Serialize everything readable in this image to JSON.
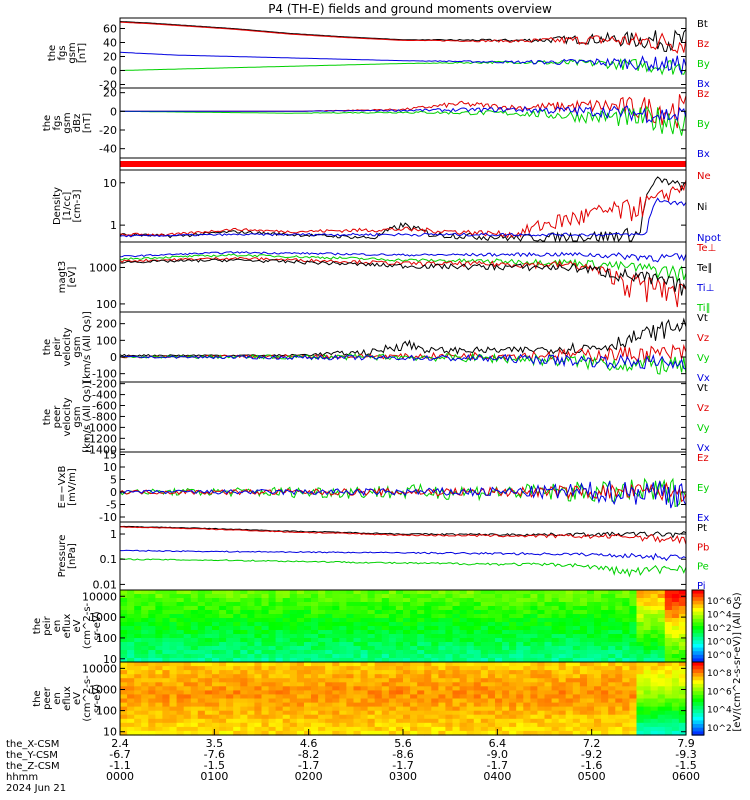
{
  "title": "P4 (TH-E) fields and ground moments overview",
  "colors": {
    "black": "#000000",
    "red": "#e00000",
    "green": "#00d000",
    "blue": "#0000e0",
    "band": "#ff0000"
  },
  "chart_data": [
    {
      "type": "line",
      "id": "fgs_gsm",
      "ylabel": [
        "the",
        "fgs",
        "gsm",
        "[nT]"
      ],
      "yticks": [
        -20,
        0,
        20,
        40,
        60
      ],
      "ylim": [
        -25,
        75
      ],
      "legend": [
        {
          "label": "Bt",
          "color": "#000000"
        },
        {
          "label": "Bz",
          "color": "#e00000"
        },
        {
          "label": "By",
          "color": "#00d000"
        },
        {
          "label": "Bx",
          "color": "#0000e0"
        }
      ],
      "series": [
        {
          "name": "Bt",
          "color": "#000000",
          "x": [
            0,
            0.05,
            0.2,
            0.3,
            0.4,
            0.5,
            0.7,
            0.85,
            1
          ],
          "y": [
            70,
            68,
            60,
            53,
            48,
            44,
            43,
            45,
            42
          ],
          "noise": [
            0,
            0,
            0,
            0,
            0,
            0,
            2,
            8,
            18
          ]
        },
        {
          "name": "Bz",
          "color": "#e00000",
          "x": [
            0,
            0.05,
            0.2,
            0.3,
            0.4,
            0.5,
            0.7,
            0.85,
            1
          ],
          "y": [
            69,
            67,
            59,
            52,
            47,
            43,
            42,
            44,
            40
          ],
          "noise": [
            0,
            0,
            0,
            0,
            0,
            0,
            2,
            8,
            18
          ]
        },
        {
          "name": "By",
          "color": "#00d000",
          "x": [
            0,
            0.1,
            0.3,
            0.5,
            0.7,
            0.85,
            1
          ],
          "y": [
            0,
            2,
            6,
            10,
            12,
            10,
            5
          ],
          "noise": [
            0,
            0,
            0,
            0,
            2,
            6,
            14
          ]
        },
        {
          "name": "Bx",
          "color": "#0000e0",
          "x": [
            0,
            0.1,
            0.3,
            0.5,
            0.7,
            0.85,
            1
          ],
          "y": [
            26,
            22,
            18,
            14,
            12,
            12,
            8
          ],
          "noise": [
            0,
            0,
            0,
            0,
            2,
            6,
            14
          ]
        }
      ]
    },
    {
      "type": "line",
      "id": "fgs_gsm_dbz",
      "ylabel": [
        "the",
        "fgs",
        "gsm",
        "dBz",
        "[nT]"
      ],
      "yticks": [
        -40,
        -20,
        0,
        20
      ],
      "ylim": [
        -50,
        25
      ],
      "legend": [
        {
          "label": "Bz",
          "color": "#e00000"
        },
        {
          "label": "By",
          "color": "#00d000"
        },
        {
          "label": "Bx",
          "color": "#0000e0"
        }
      ],
      "series": [
        {
          "name": "Bz",
          "color": "#e00000",
          "x": [
            0,
            0.3,
            0.5,
            0.6,
            0.7,
            0.85,
            1
          ],
          "y": [
            0,
            0,
            2,
            8,
            4,
            6,
            0
          ],
          "noise": [
            0,
            0,
            1,
            3,
            3,
            8,
            20
          ]
        },
        {
          "name": "By",
          "color": "#00d000",
          "x": [
            0,
            0.3,
            0.5,
            0.7,
            0.85,
            1
          ],
          "y": [
            0,
            -2,
            -1,
            -2,
            -6,
            -10
          ],
          "noise": [
            0,
            0,
            1,
            3,
            8,
            18
          ]
        },
        {
          "name": "Bx",
          "color": "#0000e0",
          "x": [
            0,
            0.3,
            0.5,
            0.7,
            0.85,
            1
          ],
          "y": [
            0,
            0,
            1,
            2,
            0,
            -5
          ],
          "noise": [
            0,
            0,
            1,
            3,
            6,
            12
          ]
        }
      ]
    },
    {
      "type": "band",
      "id": "mode_bar"
    },
    {
      "type": "line",
      "scale": "log",
      "id": "density",
      "ylabel": [
        "Density",
        "[1/cc]",
        "[cm-3]"
      ],
      "yticks": [
        1,
        10
      ],
      "ylim": [
        0.4,
        20
      ],
      "legend": [
        {
          "label": "Ne",
          "color": "#e00000"
        },
        {
          "label": "Ni",
          "color": "#000000"
        },
        {
          "label": "Npot",
          "color": "#0000e0"
        }
      ],
      "series": [
        {
          "name": "Ni",
          "color": "#000000",
          "x": [
            0,
            0.1,
            0.2,
            0.3,
            0.45,
            0.5,
            0.55,
            0.7,
            0.85,
            0.92,
            0.95,
            1
          ],
          "y": [
            0.6,
            0.55,
            0.7,
            0.6,
            0.5,
            1.0,
            0.6,
            0.5,
            0.55,
            0.6,
            12,
            8
          ],
          "noise": [
            0.05,
            0.05,
            0.05,
            0.05,
            0.05,
            0.2,
            0.1,
            0.1,
            0.2,
            0.3,
            2,
            2
          ]
        },
        {
          "name": "Ne",
          "color": "#e00000",
          "x": [
            0,
            0.1,
            0.2,
            0.3,
            0.5,
            0.7,
            0.8,
            0.9,
            0.95,
            1
          ],
          "y": [
            0.6,
            0.6,
            0.8,
            0.7,
            0.8,
            0.6,
            1.5,
            2.5,
            4,
            9
          ],
          "noise": [
            0.05,
            0.05,
            0.05,
            0.05,
            0.1,
            0.1,
            0.8,
            1.5,
            2,
            3
          ]
        },
        {
          "name": "Npot",
          "color": "#0000e0",
          "x": [
            0,
            0.2,
            0.5,
            0.8,
            0.93,
            0.95,
            1
          ],
          "y": [
            0.55,
            0.6,
            0.6,
            0.6,
            0.6,
            4,
            3
          ],
          "noise": [
            0.03,
            0.03,
            0.05,
            0.05,
            0.05,
            0.5,
            0.5
          ]
        }
      ]
    },
    {
      "type": "line",
      "scale": "log",
      "id": "temperature",
      "ylabel": [
        "magt3",
        "[eV]"
      ],
      "yticks": [
        100,
        1000
      ],
      "ylim": [
        60,
        5000
      ],
      "legend": [
        {
          "label": "Te⊥",
          "color": "#e00000"
        },
        {
          "label": "Te∥",
          "color": "#000000"
        },
        {
          "label": "Ti⊥",
          "color": "#0000e0"
        },
        {
          "label": "Ti∥",
          "color": "#00d000"
        }
      ],
      "series": [
        {
          "name": "Ti⊥",
          "color": "#0000e0",
          "x": [
            0,
            0.2,
            0.5,
            0.8,
            1
          ],
          "y": [
            2000,
            2600,
            2200,
            2300,
            1800
          ],
          "noise": [
            100,
            150,
            150,
            300,
            600
          ]
        },
        {
          "name": "Ti∥",
          "color": "#00d000",
          "x": [
            0,
            0.2,
            0.5,
            0.8,
            1
          ],
          "y": [
            1700,
            2200,
            1600,
            1400,
            700
          ],
          "noise": [
            100,
            150,
            150,
            300,
            400
          ]
        },
        {
          "name": "Te⊥",
          "color": "#e00000",
          "x": [
            0,
            0.2,
            0.5,
            0.8,
            0.9,
            1
          ],
          "y": [
            1500,
            1800,
            1300,
            1200,
            400,
            200
          ],
          "noise": [
            100,
            150,
            150,
            300,
            300,
            150
          ]
        },
        {
          "name": "Te∥",
          "color": "#000000",
          "x": [
            0,
            0.2,
            0.5,
            0.8,
            0.9,
            1
          ],
          "y": [
            1400,
            1600,
            1100,
            1000,
            600,
            300
          ],
          "noise": [
            100,
            150,
            150,
            250,
            300,
            150
          ]
        }
      ]
    },
    {
      "type": "line",
      "id": "peir_velocity",
      "ylabel": [
        "the",
        "peir",
        "velocity",
        "gsm",
        "[km/s (All Qs)]"
      ],
      "yticks": [
        -100,
        0,
        100,
        200
      ],
      "ylim": [
        -150,
        270
      ],
      "legend": [
        {
          "label": "Vt",
          "color": "#000000"
        },
        {
          "label": "Vz",
          "color": "#e00000"
        },
        {
          "label": "Vy",
          "color": "#00d000"
        },
        {
          "label": "Vx",
          "color": "#0000e0"
        }
      ],
      "series": [
        {
          "name": "Vt",
          "color": "#000000",
          "x": [
            0,
            0.3,
            0.45,
            0.5,
            0.55,
            0.7,
            0.85,
            1
          ],
          "y": [
            10,
            10,
            30,
            80,
            40,
            40,
            60,
            200
          ],
          "noise": [
            5,
            5,
            20,
            40,
            20,
            20,
            40,
            60
          ]
        },
        {
          "name": "Vz",
          "color": "#e00000",
          "x": [
            0,
            0.5,
            0.7,
            1
          ],
          "y": [
            0,
            5,
            10,
            20
          ],
          "noise": [
            5,
            15,
            25,
            60
          ]
        },
        {
          "name": "Vy",
          "color": "#00d000",
          "x": [
            0,
            0.5,
            0.7,
            1
          ],
          "y": [
            0,
            0,
            -10,
            -60
          ],
          "noise": [
            5,
            20,
            30,
            60
          ]
        },
        {
          "name": "Vx",
          "color": "#0000e0",
          "x": [
            0,
            0.5,
            0.7,
            1
          ],
          "y": [
            0,
            -5,
            -10,
            -40
          ],
          "noise": [
            5,
            15,
            25,
            50
          ]
        }
      ]
    },
    {
      "type": "line",
      "id": "peer_velocity",
      "ylabel": [
        "the",
        "peer",
        "velocity",
        "gsm",
        "[km/s (All Qs)]"
      ],
      "yticks": [
        -1400,
        -1200,
        -1000,
        -800,
        -600,
        -400,
        -200
      ],
      "ylim": [
        -1450,
        -170
      ],
      "legend": [
        {
          "label": "Vt",
          "color": "#000000"
        },
        {
          "label": "Vz",
          "color": "#e00000"
        },
        {
          "label": "Vy",
          "color": "#00d000"
        },
        {
          "label": "Vx",
          "color": "#0000e0"
        }
      ],
      "series": []
    },
    {
      "type": "line",
      "id": "efield",
      "ylabel": [
        "E=−VxB",
        "[mV/m]"
      ],
      "yticks": [
        -10,
        -5,
        0,
        5,
        10,
        15
      ],
      "ylim": [
        -12,
        16
      ],
      "legend": [
        {
          "label": "Ez",
          "color": "#e00000"
        },
        {
          "label": "Ey",
          "color": "#00d000"
        },
        {
          "label": "Ex",
          "color": "#0000e0"
        }
      ],
      "series": [
        {
          "name": "Ey",
          "color": "#00d000",
          "x": [
            0,
            0.5,
            0.7,
            1
          ],
          "y": [
            0,
            0,
            0,
            0
          ],
          "noise": [
            1,
            3,
            3,
            6
          ]
        },
        {
          "name": "Ez",
          "color": "#e00000",
          "x": [
            0,
            0.5,
            0.7,
            1
          ],
          "y": [
            0,
            0,
            0,
            0
          ],
          "noise": [
            0.8,
            1.5,
            2,
            4
          ]
        },
        {
          "name": "Ex",
          "color": "#0000e0",
          "x": [
            0,
            0.5,
            0.7,
            1
          ],
          "y": [
            0,
            0,
            0,
            0
          ],
          "noise": [
            0.6,
            1.5,
            2,
            7
          ]
        }
      ]
    },
    {
      "type": "line",
      "scale": "log",
      "id": "pressure",
      "ylabel": [
        "Pressure",
        "[nPa]"
      ],
      "yticks": [
        0.01,
        0.1,
        1
      ],
      "ylim": [
        0.006,
        3
      ],
      "legend": [
        {
          "label": "Pt",
          "color": "#000000"
        },
        {
          "label": "Pb",
          "color": "#e00000"
        },
        {
          "label": "Pe",
          "color": "#00d000"
        },
        {
          "label": "Pi",
          "color": "#0000e0"
        }
      ],
      "series": [
        {
          "name": "Pt",
          "color": "#000000",
          "x": [
            0,
            0.1,
            0.3,
            0.5,
            0.7,
            0.9,
            1
          ],
          "y": [
            2.0,
            1.8,
            1.3,
            1.0,
            0.95,
            1.0,
            1.0
          ],
          "noise": [
            0.05,
            0.05,
            0.05,
            0.05,
            0.1,
            0.2,
            0.3
          ]
        },
        {
          "name": "Pb",
          "color": "#e00000",
          "x": [
            0,
            0.1,
            0.3,
            0.5,
            0.7,
            0.9,
            1
          ],
          "y": [
            1.9,
            1.7,
            1.2,
            0.9,
            0.85,
            0.8,
            0.6
          ],
          "noise": [
            0.05,
            0.05,
            0.05,
            0.05,
            0.1,
            0.2,
            0.3
          ]
        },
        {
          "name": "Pi",
          "color": "#0000e0",
          "x": [
            0,
            0.2,
            0.5,
            0.8,
            1
          ],
          "y": [
            0.22,
            0.2,
            0.18,
            0.16,
            0.12
          ],
          "noise": [
            0.01,
            0.01,
            0.01,
            0.02,
            0.04
          ]
        },
        {
          "name": "Pe",
          "color": "#00d000",
          "x": [
            0,
            0.2,
            0.5,
            0.8,
            0.9,
            1
          ],
          "y": [
            0.1,
            0.09,
            0.07,
            0.06,
            0.03,
            0.05
          ],
          "noise": [
            0.005,
            0.005,
            0.005,
            0.01,
            0.015,
            0.02
          ]
        }
      ]
    },
    {
      "type": "heatmap",
      "scale": "log",
      "id": "peir_eflux",
      "ylabel": [
        "the",
        "peir",
        "en",
        "eflux",
        "eV",
        "(cm^2-s-",
        "sr-eV)"
      ],
      "yticks": [
        10,
        100,
        1000,
        10000
      ],
      "ylim": [
        7,
        20000
      ],
      "colorbar_ticks": [
        "10^6",
        "10^4",
        "10^2",
        "10^0",
        "10^0"
      ]
    },
    {
      "type": "heatmap",
      "scale": "log",
      "id": "peer_eflux",
      "ylabel": [
        "the",
        "peer",
        "en",
        "eflux",
        "eV",
        "(cm^2-s-",
        "sr-eV)"
      ],
      "yticks": [
        10,
        100,
        1000,
        10000
      ],
      "ylim": [
        7,
        20000
      ],
      "colorbar_ticks": [
        "10^8",
        "10^6",
        "10^4",
        "10^2"
      ]
    }
  ],
  "colorbar_label": "[eV/(cm^2-s-sr-eV)] (All Qs)",
  "xaxis": {
    "tick_hhmm": [
      "0000",
      "0100",
      "0200",
      "0300",
      "0400",
      "0500",
      "0600"
    ],
    "row_labels": [
      "the_X-CSM",
      "the_Y-CSM",
      "the_Z-CSM",
      "hhmm",
      "2024 Jun 21"
    ],
    "x_gsm": [
      "2.4",
      "3.5",
      "4.6",
      "5.6",
      "6.4",
      "7.2",
      "7.9"
    ],
    "y_gsm": [
      "-6.7",
      "-7.6",
      "-8.2",
      "-8.6",
      "-9.0",
      "-9.2",
      "-9.3"
    ],
    "z_gsm": [
      "-1.1",
      "-1.5",
      "-1.7",
      "-1.7",
      "-1.7",
      "-1.6",
      "-1.5"
    ]
  }
}
